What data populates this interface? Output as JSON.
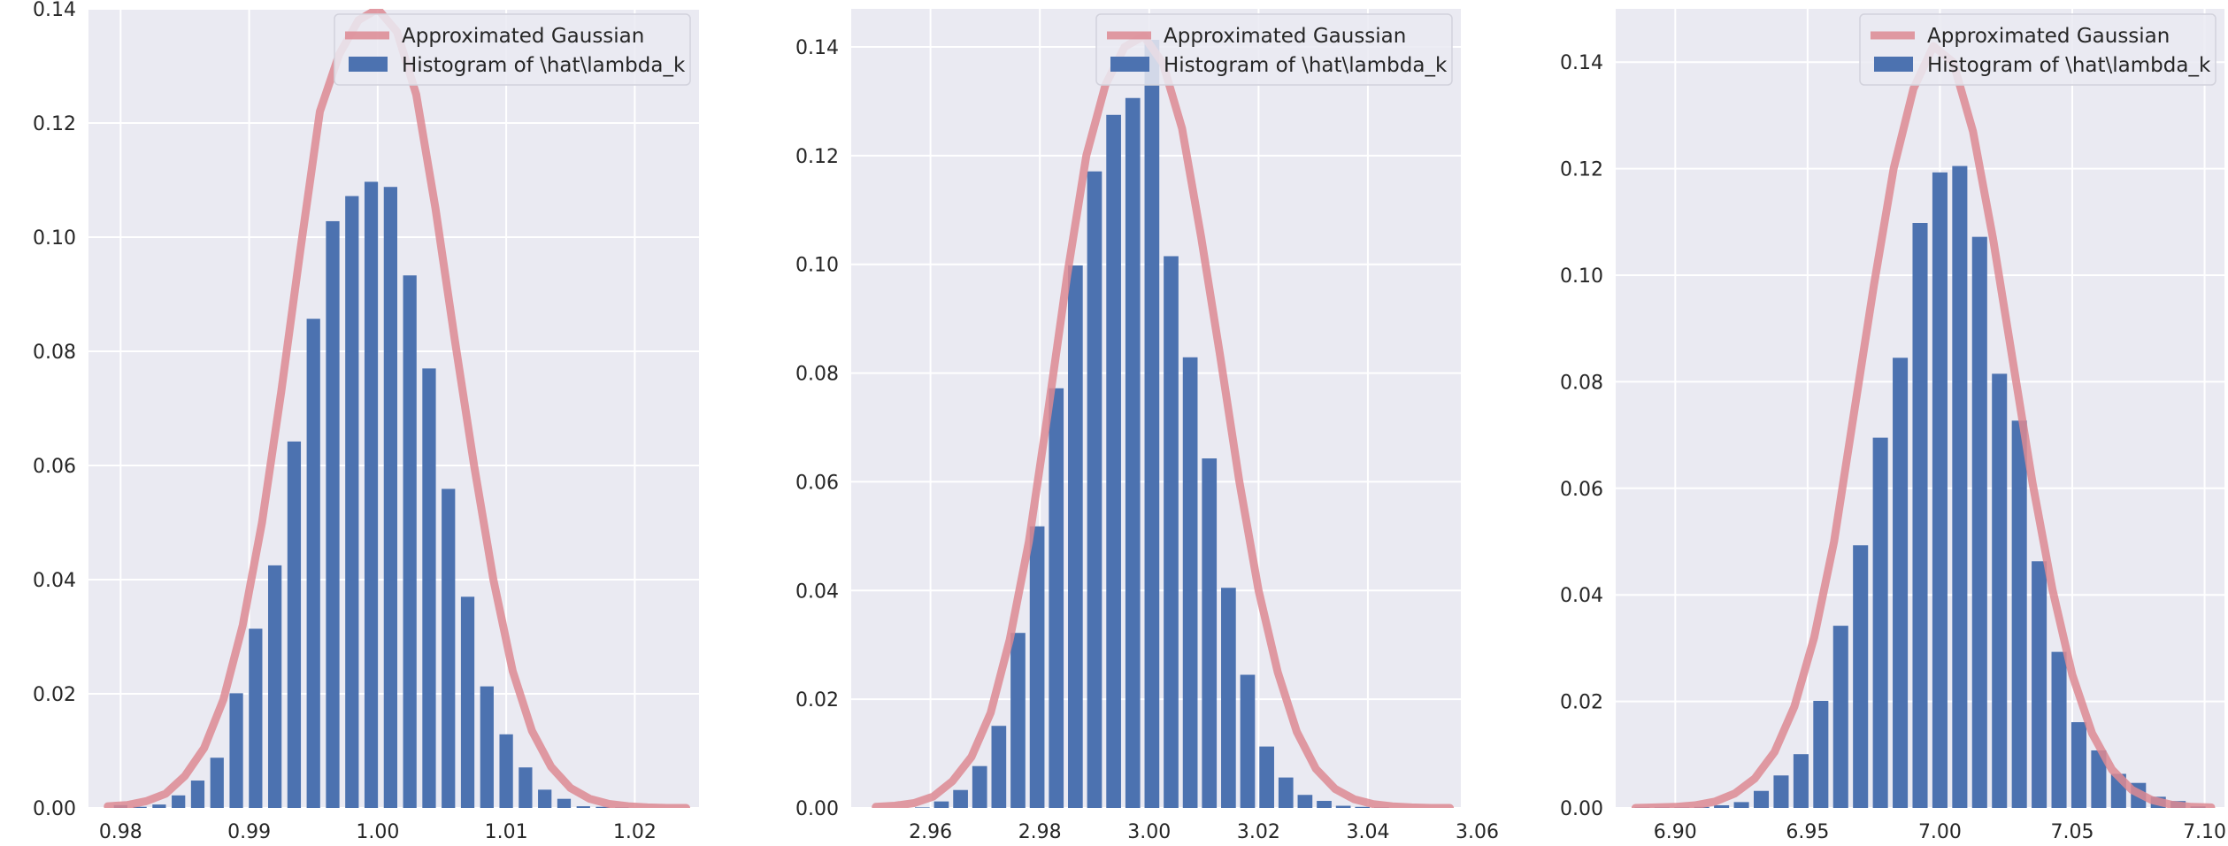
{
  "chart_data": [
    {
      "type": "bar",
      "overlay_type": "line",
      "title": "",
      "xlabel": "",
      "ylabel": "",
      "xlim": [
        0.9775,
        1.025
      ],
      "ylim": [
        0,
        0.14
      ],
      "xticks": [
        0.98,
        0.99,
        1.0,
        1.01,
        1.02
      ],
      "xtick_labels": [
        "0.98",
        "0.99",
        "1.00",
        "1.01",
        "1.02"
      ],
      "yticks": [
        0,
        0.02,
        0.04,
        0.06,
        0.08,
        0.1,
        0.12,
        0.14
      ],
      "ytick_labels": [
        "0.00",
        "0.02",
        "0.04",
        "0.06",
        "0.08",
        "0.10",
        "0.12",
        "0.14"
      ],
      "grid": true,
      "legend_position": "top-right",
      "bar_width": 0.00105,
      "series": [
        {
          "name": "Histogram of \\hat\\lambda_k",
          "kind": "bar",
          "color": "#4c72b0",
          "x": [
            0.98,
            0.9815,
            0.983,
            0.9845,
            0.986,
            0.9875,
            0.989,
            0.9905,
            0.992,
            0.9935,
            0.995,
            0.9965,
            0.998,
            0.9995,
            1.001,
            1.0025,
            1.004,
            1.0055,
            1.007,
            1.0085,
            1.01,
            1.0115,
            1.013,
            1.0145,
            1.016,
            1.0175,
            1.019
          ],
          "values": [
            0.0005,
            0.0002,
            0.0006,
            0.0022,
            0.0048,
            0.0088,
            0.0201,
            0.0314,
            0.0425,
            0.0642,
            0.0857,
            0.1028,
            0.1072,
            0.1097,
            0.1088,
            0.0933,
            0.077,
            0.0559,
            0.037,
            0.0213,
            0.0129,
            0.0071,
            0.0032,
            0.0016,
            0.0003,
            0.0002,
            0.0001
          ]
        },
        {
          "name": "Approximated Gaussian",
          "kind": "line",
          "color": "#dd8a93",
          "x": [
            0.979,
            0.9805,
            0.982,
            0.9835,
            0.985,
            0.9865,
            0.988,
            0.9895,
            0.991,
            0.9925,
            0.994,
            0.9955,
            0.997,
            0.9985,
            1.0,
            1.0015,
            1.003,
            1.0045,
            1.006,
            1.0075,
            1.009,
            1.0105,
            1.012,
            1.0135,
            1.015,
            1.0165,
            1.018,
            1.0195,
            1.021,
            1.0225,
            1.024
          ],
          "values": [
            0.0003,
            0.0005,
            0.0012,
            0.0025,
            0.0056,
            0.0105,
            0.019,
            0.032,
            0.05,
            0.073,
            0.098,
            0.122,
            0.132,
            0.138,
            0.14,
            0.136,
            0.125,
            0.105,
            0.082,
            0.06,
            0.04,
            0.024,
            0.0135,
            0.0072,
            0.0035,
            0.0016,
            0.0007,
            0.0003,
            0.0001,
            0.0,
            0.0
          ]
        }
      ]
    },
    {
      "type": "bar",
      "overlay_type": "line",
      "title": "",
      "xlabel": "",
      "ylabel": "",
      "xlim": [
        2.9455,
        3.057
      ],
      "ylim": [
        0,
        0.147
      ],
      "xticks": [
        2.96,
        2.98,
        3.0,
        3.02,
        3.04,
        3.06
      ],
      "xtick_labels": [
        "2.96",
        "2.98",
        "3.00",
        "3.02",
        "3.04",
        "3.06"
      ],
      "yticks": [
        0,
        0.02,
        0.04,
        0.06,
        0.08,
        0.1,
        0.12,
        0.14
      ],
      "ytick_labels": [
        "0.00",
        "0.02",
        "0.04",
        "0.06",
        "0.08",
        "0.10",
        "0.12",
        "0.14"
      ],
      "grid": true,
      "legend_position": "top-right",
      "bar_width": 0.0027,
      "series": [
        {
          "name": "Histogram of \\hat\\lambda_k",
          "kind": "bar",
          "color": "#4c72b0",
          "x": [
            2.9585,
            2.962,
            2.9655,
            2.969,
            2.9725,
            2.976,
            2.9795,
            2.983,
            2.9865,
            2.99,
            2.9935,
            2.997,
            3.0005,
            3.004,
            3.0075,
            3.011,
            3.0145,
            3.018,
            3.0215,
            3.025,
            3.0285,
            3.032,
            3.0355,
            3.039,
            3.0425
          ],
          "values": [
            0.0001,
            0.0012,
            0.0033,
            0.0077,
            0.0151,
            0.0322,
            0.0518,
            0.0772,
            0.0998,
            0.1171,
            0.1275,
            0.1306,
            0.1413,
            0.1015,
            0.0829,
            0.0643,
            0.0405,
            0.0245,
            0.0113,
            0.0056,
            0.0024,
            0.0013,
            0.0004,
            0.0002,
            0.0001
          ]
        },
        {
          "name": "Approximated Gaussian",
          "kind": "line",
          "color": "#dd8a93",
          "x": [
            2.95,
            2.9535,
            2.957,
            2.9605,
            2.964,
            2.9675,
            2.971,
            2.9745,
            2.978,
            2.9815,
            2.985,
            2.9885,
            2.992,
            2.9955,
            2.999,
            3.0025,
            3.006,
            3.0095,
            3.013,
            3.0165,
            3.02,
            3.0235,
            3.027,
            3.0305,
            3.034,
            3.0375,
            3.041,
            3.0445,
            3.048,
            3.0515,
            3.055
          ],
          "values": [
            0.0002,
            0.0004,
            0.0009,
            0.0021,
            0.0049,
            0.0094,
            0.0175,
            0.031,
            0.049,
            0.073,
            0.098,
            0.12,
            0.133,
            0.14,
            0.142,
            0.137,
            0.125,
            0.105,
            0.083,
            0.06,
            0.04,
            0.025,
            0.014,
            0.0072,
            0.0035,
            0.0016,
            0.0007,
            0.0003,
            0.0001,
            0.0,
            0.0
          ]
        }
      ]
    },
    {
      "type": "bar",
      "overlay_type": "line",
      "title": "",
      "xlabel": "",
      "ylabel": "",
      "xlim": [
        6.8775,
        7.1075
      ],
      "ylim": [
        0,
        0.15
      ],
      "xticks": [
        6.9,
        6.95,
        7.0,
        7.05,
        7.1
      ],
      "xtick_labels": [
        "6.90",
        "6.95",
        "7.00",
        "7.05",
        "7.10"
      ],
      "yticks": [
        0,
        0.02,
        0.04,
        0.06,
        0.08,
        0.1,
        0.12,
        0.14
      ],
      "ytick_labels": [
        "0.00",
        "0.02",
        "0.04",
        "0.06",
        "0.08",
        "0.10",
        "0.12",
        "0.14"
      ],
      "grid": true,
      "legend_position": "top-right",
      "bar_width": 0.0057,
      "series": [
        {
          "name": "Histogram of \\hat\\lambda_k",
          "kind": "bar",
          "color": "#4c72b0",
          "x": [
            6.8875,
            6.895,
            6.9025,
            6.91,
            6.9175,
            6.925,
            6.9325,
            6.94,
            6.9475,
            6.955,
            6.9625,
            6.97,
            6.9775,
            6.985,
            6.9925,
            7.0,
            7.0075,
            7.015,
            7.0225,
            7.03,
            7.0375,
            7.045,
            7.0525,
            7.06,
            7.0675,
            7.075,
            7.0825,
            7.09,
            7.0975
          ],
          "values": [
            0.0001,
            0.0001,
            0.0001,
            0.0002,
            0.0005,
            0.0011,
            0.0032,
            0.0061,
            0.0101,
            0.0201,
            0.0342,
            0.0493,
            0.0695,
            0.0845,
            0.1098,
            0.1193,
            0.1205,
            0.1072,
            0.0815,
            0.0727,
            0.0463,
            0.0293,
            0.0161,
            0.0108,
            0.0064,
            0.0047,
            0.0021,
            0.0013,
            0.0003
          ]
        },
        {
          "name": "Approximated Gaussian",
          "kind": "line",
          "color": "#dd8a93",
          "x": [
            6.885,
            6.8925,
            6.9,
            6.9075,
            6.915,
            6.9225,
            6.93,
            6.9375,
            6.945,
            6.9525,
            6.96,
            6.9675,
            6.975,
            6.9825,
            6.99,
            6.9975,
            7.005,
            7.0125,
            7.02,
            7.0275,
            7.035,
            7.0425,
            7.05,
            7.0575,
            7.065,
            7.0725,
            7.08,
            7.0875,
            7.095,
            7.1025
          ],
          "values": [
            0.0,
            0.0001,
            0.0002,
            0.0005,
            0.0012,
            0.0027,
            0.0055,
            0.0105,
            0.019,
            0.032,
            0.05,
            0.074,
            0.098,
            0.12,
            0.135,
            0.143,
            0.14,
            0.127,
            0.107,
            0.084,
            0.061,
            0.041,
            0.025,
            0.014,
            0.0072,
            0.0034,
            0.0015,
            0.0006,
            0.0002,
            0.0001
          ]
        }
      ]
    }
  ]
}
